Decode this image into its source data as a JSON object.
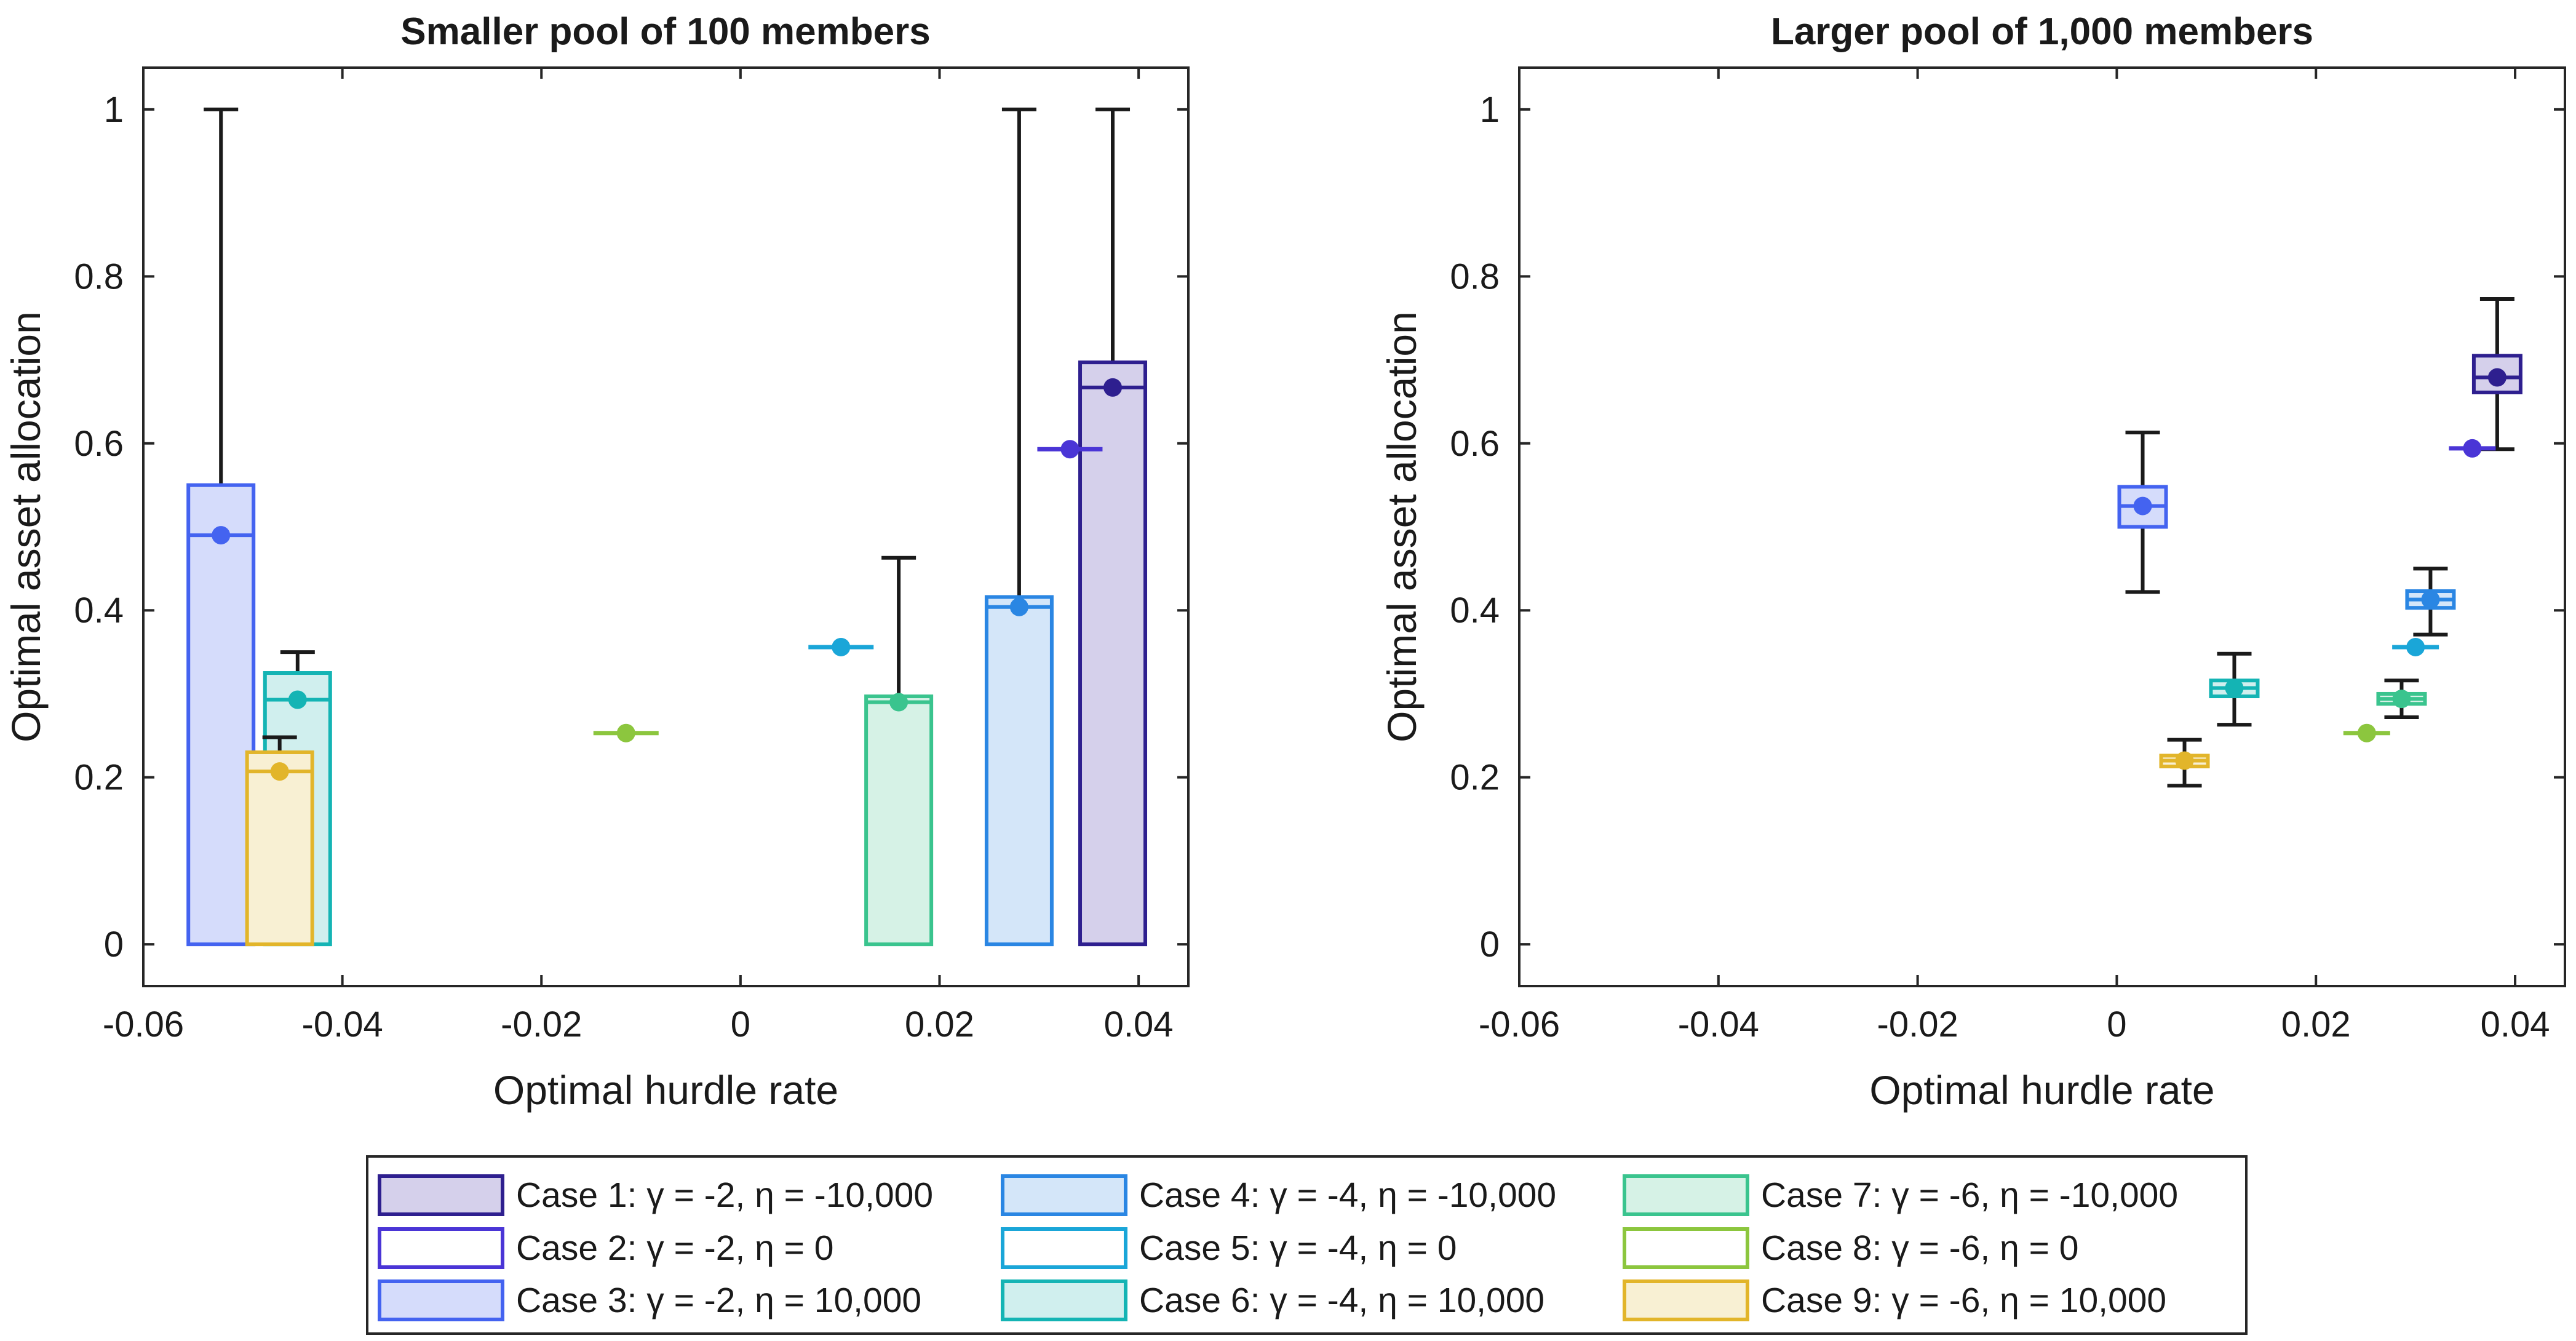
{
  "chart_data": [
    {
      "type": "boxplot",
      "title": "Smaller pool of 100 members",
      "xlabel": "Optimal hurdle rate",
      "ylabel": "Optimal asset allocation",
      "xlim": [
        -0.06,
        0.045
      ],
      "ylim": [
        -0.05,
        1.05
      ],
      "xticks": [
        -0.06,
        -0.04,
        -0.02,
        0,
        0.02,
        0.04
      ],
      "xtick_labels": [
        "-0.06",
        "-0.04",
        "-0.02",
        "0",
        "0.02",
        "0.04"
      ],
      "yticks": [
        0,
        0.2,
        0.4,
        0.6,
        0.8,
        1
      ],
      "ytick_labels": [
        "0",
        "0.2",
        "0.4",
        "0.6",
        "0.8",
        "1"
      ],
      "series": [
        {
          "case": 1,
          "x": 0.0374,
          "mean": 0.667,
          "median": 0.667,
          "q1": 0,
          "q3": 0.697,
          "whisker_low": 0,
          "whisker_high": 1
        },
        {
          "case": 2,
          "x": 0.0331,
          "mean": 0.593,
          "median": 0.593,
          "q1": 0.593,
          "q3": 0.593,
          "whisker_low": 0.593,
          "whisker_high": 0.593
        },
        {
          "case": 3,
          "x": -0.0522,
          "mean": 0.49,
          "median": 0.49,
          "q1": 0,
          "q3": 0.55,
          "whisker_low": 0,
          "whisker_high": 1
        },
        {
          "case": 4,
          "x": 0.028,
          "mean": 0.404,
          "median": 0.404,
          "q1": 0,
          "q3": 0.416,
          "whisker_low": 0,
          "whisker_high": 1
        },
        {
          "case": 5,
          "x": 0.0101,
          "mean": 0.356,
          "median": 0.356,
          "q1": 0.356,
          "q3": 0.356,
          "whisker_low": 0.356,
          "whisker_high": 0.356
        },
        {
          "case": 6,
          "x": -0.0445,
          "mean": 0.293,
          "median": 0.293,
          "q1": 0,
          "q3": 0.325,
          "whisker_low": 0,
          "whisker_high": 0.35
        },
        {
          "case": 7,
          "x": 0.0159,
          "mean": 0.29,
          "median": 0.29,
          "q1": 0,
          "q3": 0.297,
          "whisker_low": 0,
          "whisker_high": 0.463
        },
        {
          "case": 8,
          "x": -0.0115,
          "mean": 0.253,
          "median": 0.253,
          "q1": 0.253,
          "q3": 0.253,
          "whisker_low": 0.253,
          "whisker_high": 0.253
        },
        {
          "case": 9,
          "x": -0.0463,
          "mean": 0.207,
          "median": 0.207,
          "q1": 0,
          "q3": 0.23,
          "whisker_low": 0,
          "whisker_high": 0.248
        }
      ]
    },
    {
      "type": "boxplot",
      "title": "Larger pool of 1,000 members",
      "xlabel": "Optimal hurdle rate",
      "ylabel": "Optimal asset allocation",
      "xlim": [
        -0.06,
        0.045
      ],
      "ylim": [
        -0.05,
        1.05
      ],
      "xticks": [
        -0.06,
        -0.04,
        -0.02,
        0,
        0.02,
        0.04
      ],
      "xtick_labels": [
        "-0.06",
        "-0.04",
        "-0.02",
        "0",
        "0.02",
        "0.04"
      ],
      "yticks": [
        0,
        0.2,
        0.4,
        0.6,
        0.8,
        1
      ],
      "ytick_labels": [
        "0",
        "0.2",
        "0.4",
        "0.6",
        "0.8",
        "1"
      ],
      "series": [
        {
          "case": 1,
          "x": 0.0382,
          "mean": 0.679,
          "median": 0.679,
          "q1": 0.661,
          "q3": 0.705,
          "whisker_low": 0.593,
          "whisker_high": 0.773
        },
        {
          "case": 2,
          "x": 0.0357,
          "mean": 0.594,
          "median": 0.594,
          "q1": 0.594,
          "q3": 0.594,
          "whisker_low": 0.594,
          "whisker_high": 0.594
        },
        {
          "case": 3,
          "x": 0.0026,
          "mean": 0.525,
          "median": 0.525,
          "q1": 0.5,
          "q3": 0.548,
          "whisker_low": 0.422,
          "whisker_high": 0.613
        },
        {
          "case": 4,
          "x": 0.0315,
          "mean": 0.413,
          "median": 0.413,
          "q1": 0.403,
          "q3": 0.423,
          "whisker_low": 0.371,
          "whisker_high": 0.45
        },
        {
          "case": 5,
          "x": 0.03,
          "mean": 0.356,
          "median": 0.356,
          "q1": 0.356,
          "q3": 0.356,
          "whisker_low": 0.356,
          "whisker_high": 0.356
        },
        {
          "case": 6,
          "x": 0.0118,
          "mean": 0.307,
          "median": 0.307,
          "q1": 0.297,
          "q3": 0.316,
          "whisker_low": 0.263,
          "whisker_high": 0.348
        },
        {
          "case": 7,
          "x": 0.0286,
          "mean": 0.294,
          "median": 0.294,
          "q1": 0.288,
          "q3": 0.3,
          "whisker_low": 0.272,
          "whisker_high": 0.316
        },
        {
          "case": 8,
          "x": 0.0251,
          "mean": 0.253,
          "median": 0.253,
          "q1": 0.253,
          "q3": 0.253,
          "whisker_low": 0.253,
          "whisker_high": 0.253
        },
        {
          "case": 9,
          "x": 0.0068,
          "mean": 0.22,
          "median": 0.22,
          "q1": 0.213,
          "q3": 0.226,
          "whisker_low": 0.19,
          "whisker_high": 0.245
        }
      ]
    }
  ],
  "legend": {
    "placement": "bottom-center",
    "entries": [
      {
        "case": 1,
        "text": "Case 1: γ = -2,  η = -10,000",
        "color": "#2e1f8f",
        "fill": "#d5d0eb"
      },
      {
        "case": 2,
        "text": "Case 2: γ = -2,  η = 0",
        "color": "#4a35d6",
        "fill": "#ffffff"
      },
      {
        "case": 3,
        "text": "Case 3: γ = -2,  η = 10,000",
        "color": "#4463f0",
        "fill": "#d5dcfb"
      },
      {
        "case": 4,
        "text": "Case 4: γ = -4,  η = -10,000",
        "color": "#2a86e3",
        "fill": "#d4e6f9"
      },
      {
        "case": 5,
        "text": "Case 5: γ = -4,  η = 0",
        "color": "#1aa6d8",
        "fill": "#ffffff"
      },
      {
        "case": 6,
        "text": "Case 6: γ = -4,  η = 10,000",
        "color": "#14b4b4",
        "fill": "#d0efee"
      },
      {
        "case": 7,
        "text": "Case 7: γ = -6,  η = -10,000",
        "color": "#3ac48e",
        "fill": "#d6f2e6"
      },
      {
        "case": 8,
        "text": "Case 8: γ = -6,  η = 0",
        "color": "#8cc63e",
        "fill": "#ffffff"
      },
      {
        "case": 9,
        "text": "Case 9: γ = -6,  η = 10,000",
        "color": "#e2b52a",
        "fill": "#f8f0d3"
      }
    ]
  }
}
